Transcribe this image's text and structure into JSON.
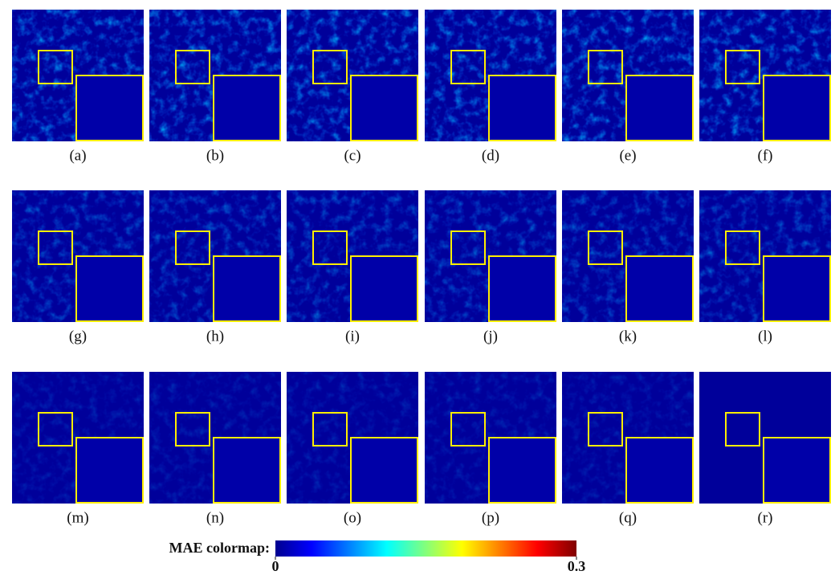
{
  "panels": [
    {
      "label": "(a)"
    },
    {
      "label": "(b)"
    },
    {
      "label": "(c)"
    },
    {
      "label": "(d)"
    },
    {
      "label": "(e)"
    },
    {
      "label": "(f)"
    },
    {
      "label": "(g)"
    },
    {
      "label": "(h)"
    },
    {
      "label": "(i)"
    },
    {
      "label": "(j)"
    },
    {
      "label": "(k)"
    },
    {
      "label": "(l)"
    },
    {
      "label": "(m)"
    },
    {
      "label": "(n)"
    },
    {
      "label": "(o)"
    },
    {
      "label": "(p)"
    },
    {
      "label": "(q)"
    },
    {
      "label": "(r)"
    }
  ],
  "colorbar": {
    "label": "MAE colormap:",
    "lim": [
      0,
      0.3
    ],
    "ticks": [
      0,
      0.3
    ]
  }
}
